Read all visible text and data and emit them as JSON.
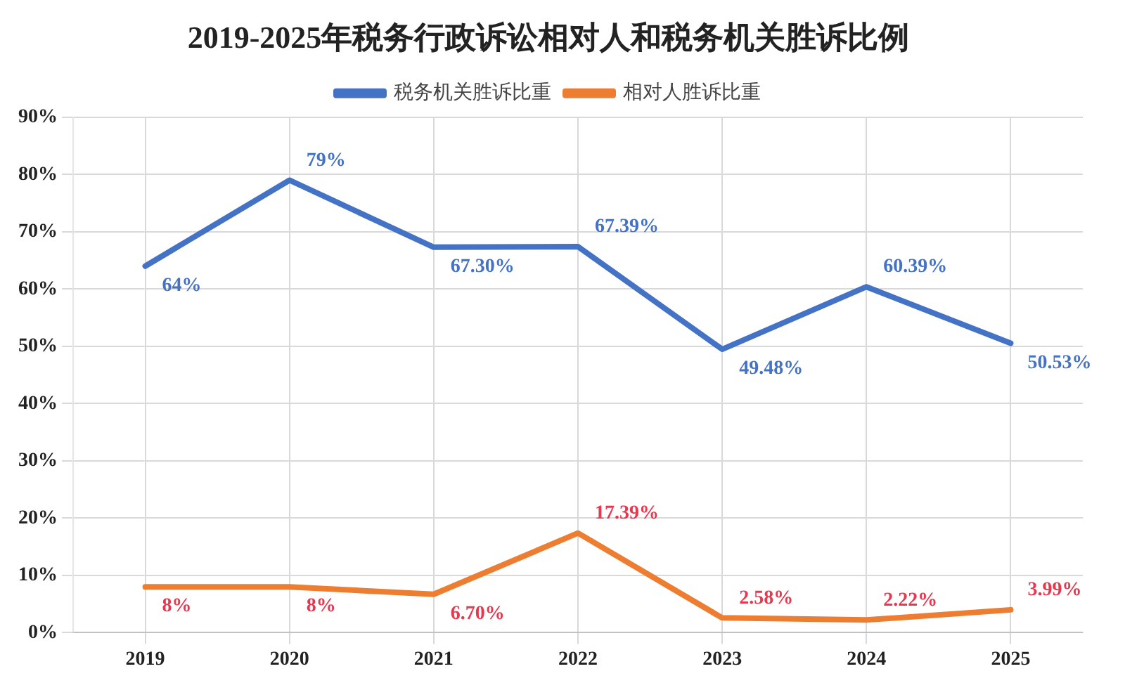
{
  "chart_data": {
    "type": "line",
    "title": "2019-2025年税务行政诉讼相对人和税务机关胜诉比例",
    "categories": [
      "2019",
      "2020",
      "2021",
      "2022",
      "2023",
      "2024",
      "2025"
    ],
    "series": [
      {
        "name": "税务机关胜诉比重",
        "color": "#4472c4",
        "values": [
          64,
          79,
          67.3,
          67.39,
          49.48,
          60.39,
          50.53
        ],
        "value_labels": [
          "64%",
          "79%",
          "67.30%",
          "67.39%",
          "49.48%",
          "60.39%",
          "50.53%"
        ]
      },
      {
        "name": "相对人胜诉比重",
        "color": "#ed7d31",
        "values": [
          8,
          8,
          6.7,
          17.39,
          2.58,
          2.22,
          3.99
        ],
        "value_labels": [
          "8%",
          "8%",
          "6.70%",
          "17.39%",
          "2.58%",
          "2.22%",
          "3.99%"
        ]
      }
    ],
    "ylim": [
      0,
      90
    ],
    "yticks": [
      {
        "value": 0,
        "label": "0%"
      },
      {
        "value": 10,
        "label": "10%"
      },
      {
        "value": 20,
        "label": "20%"
      },
      {
        "value": 30,
        "label": "30%"
      },
      {
        "value": 40,
        "label": "40%"
      },
      {
        "value": 50,
        "label": "50%"
      },
      {
        "value": 60,
        "label": "60%"
      },
      {
        "value": 70,
        "label": "70%"
      },
      {
        "value": 80,
        "label": "80%"
      },
      {
        "value": 90,
        "label": "90%"
      }
    ],
    "grid": true,
    "legend": "top",
    "marker": "none",
    "line_style": "solid"
  }
}
